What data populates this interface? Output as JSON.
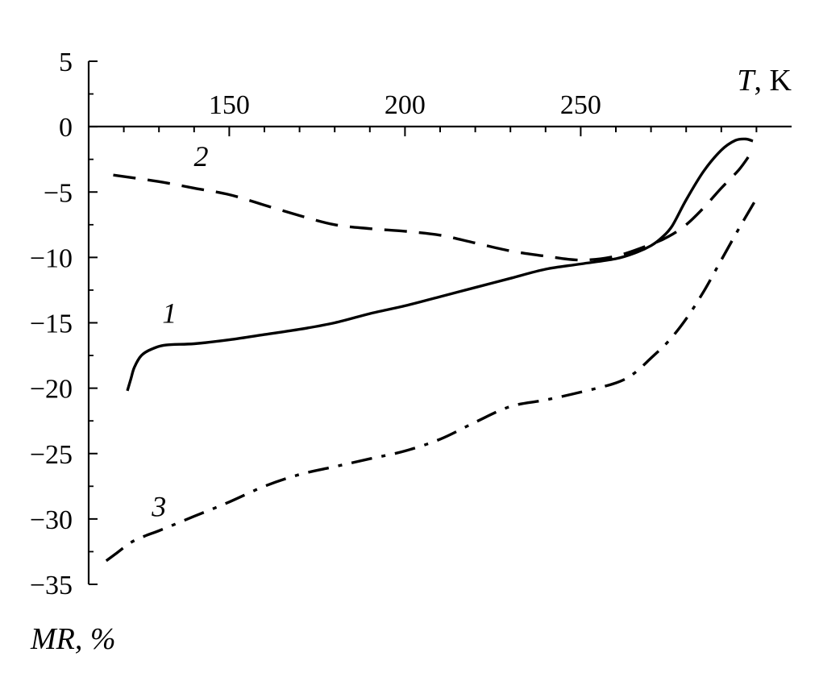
{
  "chart_data": {
    "type": "line",
    "xlabel": {
      "var": "T",
      "unit": ", K"
    },
    "ylabel": {
      "var": "MR",
      "unit": ", %"
    },
    "xlim": [
      110,
      310
    ],
    "ylim": [
      -35,
      5
    ],
    "x_major_ticks": [
      150,
      200,
      250
    ],
    "x_tick_labels": [
      "150",
      "200",
      "250"
    ],
    "y_major_ticks": [
      5,
      0,
      -5,
      -10,
      -15,
      -20,
      -25,
      -30,
      -35
    ],
    "y_tick_labels": [
      "5",
      "0",
      "−5",
      "−10",
      "−15",
      "−20",
      "−25",
      "−30",
      "−35"
    ],
    "grid": false,
    "series": [
      {
        "name": "1",
        "style": "solid",
        "color": "#000000",
        "x": [
          121,
          122,
          123,
          125,
          128,
          132,
          140,
          150,
          160,
          170,
          180,
          190,
          200,
          210,
          220,
          230,
          240,
          250,
          260,
          266,
          270,
          273,
          276,
          280,
          285,
          290,
          294,
          297,
          299
        ],
        "y": [
          -20.2,
          -19.3,
          -18.4,
          -17.5,
          -17.0,
          -16.7,
          -16.6,
          -16.3,
          -15.9,
          -15.5,
          -15.0,
          -14.3,
          -13.7,
          -13.0,
          -12.3,
          -11.6,
          -10.9,
          -10.5,
          -10.1,
          -9.6,
          -9.1,
          -8.5,
          -7.6,
          -5.6,
          -3.4,
          -1.8,
          -1.05,
          -0.95,
          -1.1
        ]
      },
      {
        "name": "2",
        "style": "dashed",
        "color": "#000000",
        "x": [
          117,
          130,
          140,
          150,
          160,
          170,
          180,
          190,
          200,
          210,
          220,
          230,
          240,
          250,
          260,
          270,
          275,
          280,
          285,
          290,
          295,
          298
        ],
        "y": [
          -3.7,
          -4.2,
          -4.7,
          -5.2,
          -6.0,
          -6.8,
          -7.5,
          -7.8,
          -8.0,
          -8.3,
          -8.9,
          -9.5,
          -9.9,
          -10.2,
          -9.9,
          -9.0,
          -8.4,
          -7.5,
          -6.2,
          -4.7,
          -3.3,
          -2.2
        ]
      },
      {
        "name": "3",
        "style": "dashdot",
        "color": "#000000",
        "x": [
          115,
          118,
          122,
          126,
          130,
          140,
          150,
          160,
          170,
          180,
          190,
          200,
          210,
          220,
          230,
          240,
          250,
          260,
          265,
          270,
          275,
          280,
          285,
          290,
          295,
          300
        ],
        "y": [
          -33.2,
          -32.6,
          -31.8,
          -31.3,
          -30.9,
          -29.8,
          -28.7,
          -27.5,
          -26.6,
          -26.0,
          -25.4,
          -24.8,
          -23.9,
          -22.6,
          -21.4,
          -20.9,
          -20.3,
          -19.6,
          -18.9,
          -17.7,
          -16.4,
          -14.7,
          -12.6,
          -10.2,
          -7.8,
          -5.5
        ]
      }
    ],
    "series_label_positions": [
      {
        "series": "1",
        "x": 133,
        "y": -15.0
      },
      {
        "series": "2",
        "x": 142,
        "y": -3.0
      },
      {
        "series": "3",
        "x": 130,
        "y": -29.8
      }
    ]
  }
}
